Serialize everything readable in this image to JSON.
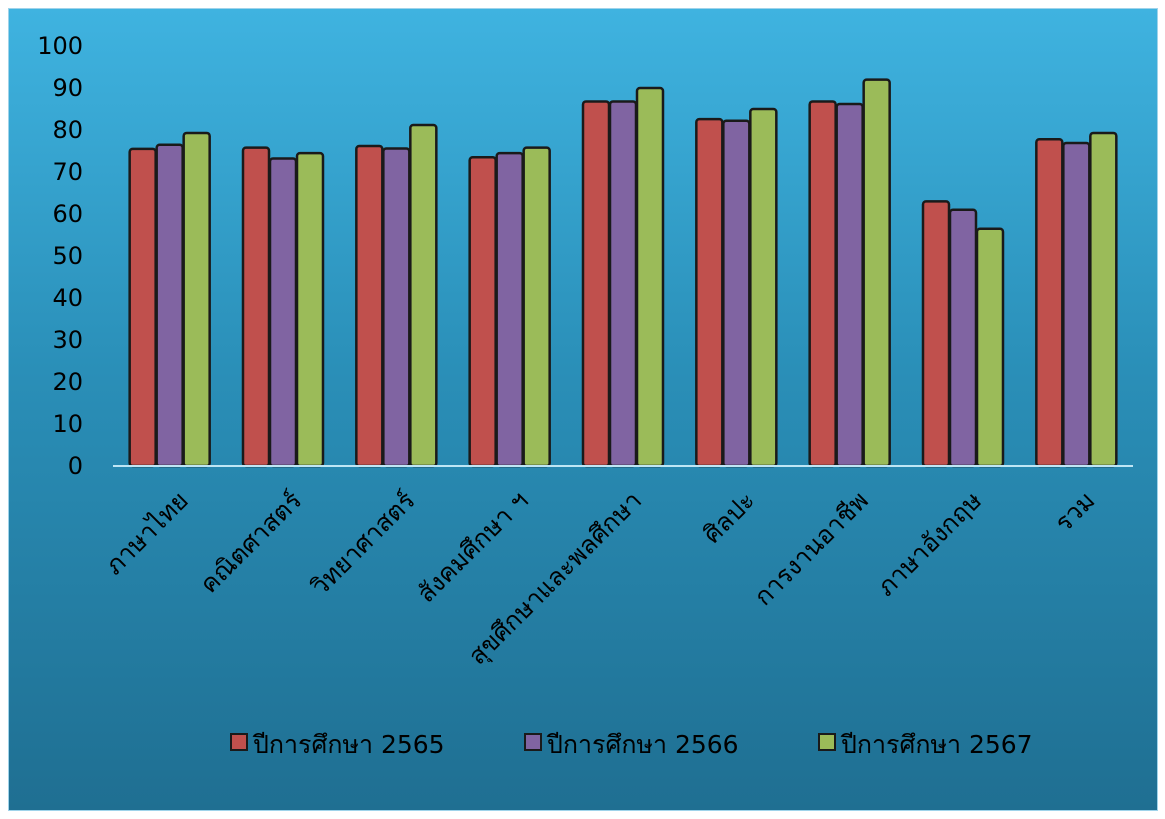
{
  "chart_data": {
    "type": "bar",
    "categories": [
      "ภาษาไทย",
      "คณิตศาสตร์",
      "วิทยาศาสตร์",
      "สังคมศึกษา ฯ",
      "สุขศึกษาและพลศึกษา",
      "ศิลปะ",
      "การงานอาชีพ",
      "ภาษาอังกฤษ",
      "รวม"
    ],
    "series": [
      {
        "name": "ปีการศึกษา 2565",
        "color": "#c0504d",
        "values": [
          75.5,
          75.8,
          76.2,
          73.5,
          86.8,
          82.6,
          86.8,
          63,
          77.8
        ]
      },
      {
        "name": "ปีการศึกษา 2566",
        "color": "#8064a2",
        "values": [
          76.5,
          73.2,
          75.6,
          74.5,
          86.8,
          82.2,
          86.2,
          61,
          76.9
        ]
      },
      {
        "name": "ปีการศึกษา 2567",
        "color": "#9bbb59",
        "values": [
          79.3,
          74.5,
          81.2,
          75.8,
          90,
          85,
          92,
          56.5,
          79.3
        ]
      }
    ],
    "ylim": [
      0,
      100
    ],
    "yticks": [
      "0",
      "10",
      "20",
      "30",
      "40",
      "50",
      "60",
      "70",
      "80",
      "90",
      "100"
    ],
    "grid": false,
    "legend_position": "bottom"
  }
}
